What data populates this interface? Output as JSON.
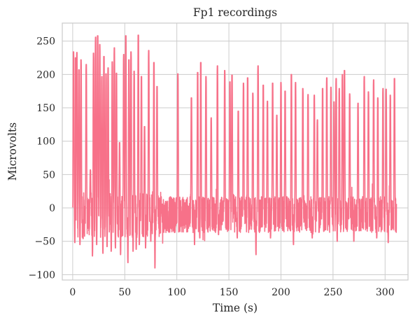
{
  "chart_data": {
    "type": "line",
    "title": "Fp1 recordings",
    "xlabel": "Time (s)",
    "ylabel": "Microvolts",
    "xlim": [
      -10,
      322
    ],
    "ylim": [
      -108,
      277
    ],
    "xticks": [
      0,
      50,
      100,
      150,
      200,
      250,
      300
    ],
    "yticks": [
      -100,
      -50,
      0,
      50,
      100,
      150,
      200,
      250
    ],
    "grid": true,
    "series": [
      {
        "name": "Fp1",
        "color": "#f77189",
        "baseline_noise": {
          "typical_low": -40,
          "typical_high": 20
        },
        "spikes": [
          [
            0.8,
            234
          ],
          [
            2.5,
            225
          ],
          [
            4,
            233
          ],
          [
            6,
            207
          ],
          [
            8,
            222
          ],
          [
            13,
            215
          ],
          [
            17,
            57
          ],
          [
            20,
            232
          ],
          [
            22,
            256
          ],
          [
            24,
            258
          ],
          [
            26,
            245
          ],
          [
            28,
            197
          ],
          [
            30,
            227
          ],
          [
            32,
            201
          ],
          [
            34,
            210
          ],
          [
            38,
            219
          ],
          [
            40,
            240
          ],
          [
            42,
            202
          ],
          [
            45,
            98
          ],
          [
            49,
            230
          ],
          [
            51,
            258
          ],
          [
            54,
            222
          ],
          [
            56,
            234
          ],
          [
            59,
            205
          ],
          [
            63,
            259
          ],
          [
            66,
            197
          ],
          [
            69,
            122
          ],
          [
            73,
            236
          ],
          [
            78,
            218
          ],
          [
            81,
            182
          ],
          [
            101,
            201
          ],
          [
            114,
            165
          ],
          [
            120,
            203
          ],
          [
            123,
            218
          ],
          [
            128,
            197
          ],
          [
            133,
            135
          ],
          [
            139,
            213
          ],
          [
            146,
            206
          ],
          [
            151,
            189
          ],
          [
            153,
            199
          ],
          [
            159,
            145
          ],
          [
            164,
            187
          ],
          [
            168,
            195
          ],
          [
            173,
            172
          ],
          [
            178,
            213
          ],
          [
            183,
            184
          ],
          [
            187,
            160
          ],
          [
            192,
            187
          ],
          [
            196,
            139
          ],
          [
            200,
            188
          ],
          [
            204,
            175
          ],
          [
            210,
            200
          ],
          [
            214,
            188
          ],
          [
            221,
            179
          ],
          [
            226,
            170
          ],
          [
            232,
            169
          ],
          [
            235,
            132
          ],
          [
            240,
            179
          ],
          [
            244,
            195
          ],
          [
            248,
            181
          ],
          [
            251,
            159
          ],
          [
            253,
            194
          ],
          [
            256,
            179
          ],
          [
            259,
            200
          ],
          [
            261,
            206
          ],
          [
            266,
            171
          ],
          [
            274,
            157
          ],
          [
            280,
            197
          ],
          [
            284,
            174
          ],
          [
            289,
            192
          ],
          [
            293,
            165
          ],
          [
            298,
            179
          ],
          [
            301,
            178
          ],
          [
            305,
            169
          ],
          [
            309,
            194
          ]
        ],
        "dips": [
          [
            2,
            -52
          ],
          [
            7,
            -55
          ],
          [
            10,
            -46
          ],
          [
            19,
            -72
          ],
          [
            23,
            -55
          ],
          [
            29,
            -68
          ],
          [
            33,
            -58
          ],
          [
            37,
            -65
          ],
          [
            41,
            -60
          ],
          [
            46,
            -70
          ],
          [
            53,
            -82
          ],
          [
            58,
            -65
          ],
          [
            61,
            -62
          ],
          [
            64,
            -55
          ],
          [
            70,
            -60
          ],
          [
            75,
            -50
          ],
          [
            79,
            -90
          ],
          [
            92,
            -28
          ],
          [
            117,
            -55
          ],
          [
            122,
            -45
          ],
          [
            140,
            -40
          ],
          [
            158,
            -45
          ],
          [
            176,
            -70
          ],
          [
            190,
            -45
          ],
          [
            212,
            -55
          ],
          [
            230,
            -45
          ],
          [
            254,
            -50
          ],
          [
            270,
            -50
          ],
          [
            292,
            -45
          ],
          [
            303,
            -52
          ]
        ],
        "spike_duration_s": 1.4,
        "signal_end_s": 311
      }
    ]
  }
}
